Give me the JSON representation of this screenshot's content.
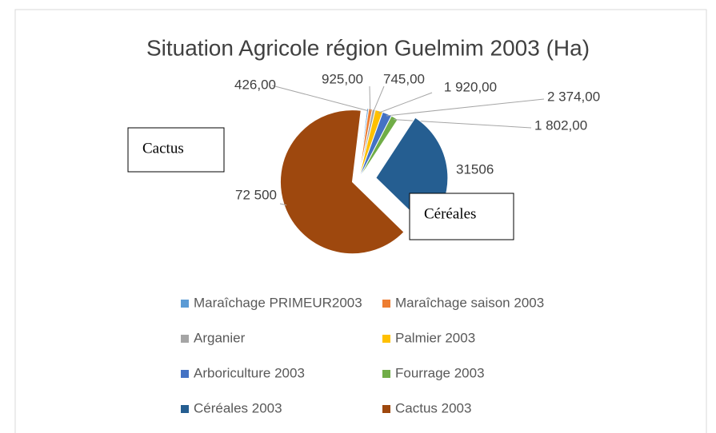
{
  "chart_data": {
    "type": "pie",
    "title": "Situation Agricole région Guelmim 2003 (Ha)",
    "categories": [
      "Maraîchage PRIMEUR2003",
      "Maraîchage saison 2003",
      "Arganier",
      "Palmier 2003",
      "Arboriculture 2003",
      "Fourrage 2003",
      "Céréales 2003",
      "Cactus 2003"
    ],
    "values": [
      426,
      925,
      745,
      1920,
      2374,
      1802,
      31506,
      72500
    ],
    "value_labels": [
      "426,00",
      "925,00",
      "745,00",
      "1 920,00",
      "2 374,00",
      "1 802,00",
      "31506",
      "72 500"
    ],
    "colors": [
      "#5b9bd5",
      "#ed7d31",
      "#a5a5a5",
      "#ffc000",
      "#4472c4",
      "#70ad47",
      "#255e91",
      "#9e480e"
    ],
    "annotations": [
      "Cactus",
      "Céréales"
    ],
    "legend": "bottom"
  }
}
